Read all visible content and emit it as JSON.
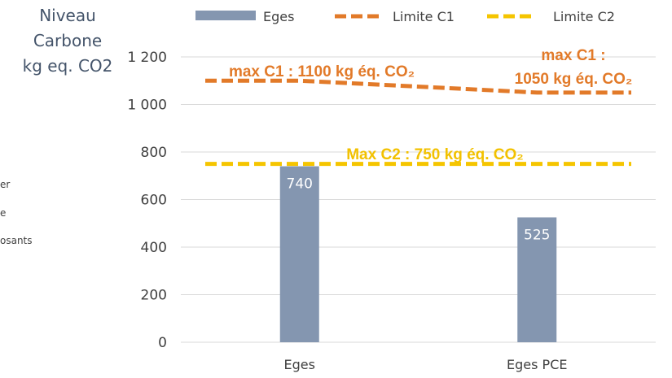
{
  "chart_data": {
    "type": "bar",
    "ylabel_lines": [
      "Niveau",
      "Carbone",
      "kg eq. CO2"
    ],
    "categories": [
      "Eges",
      "Eges PCE"
    ],
    "ylim": [
      0,
      1200
    ],
    "yticks": [
      0,
      200,
      400,
      600,
      800,
      1000,
      1200
    ],
    "ytick_labels": [
      "0",
      "200",
      "400",
      "600",
      "800",
      "1 000",
      "1 200"
    ],
    "grid": true,
    "legend_position": "top",
    "series": [
      {
        "name": "Eges",
        "kind": "bar",
        "color": "#8496b0",
        "values": [
          740,
          525
        ],
        "data_labels": [
          "740",
          "525"
        ]
      },
      {
        "name": "Limite C1",
        "kind": "line",
        "style": "dashed",
        "color": "#e27a29",
        "values": [
          1100,
          1050
        ]
      },
      {
        "name": "Limite C2",
        "kind": "line",
        "style": "dashed",
        "color": "#f5c500",
        "values": [
          750,
          750
        ]
      }
    ],
    "annotations": [
      {
        "id": "c1-a",
        "lines": [
          "max C1 : 1100 kg éq. CO₂"
        ]
      },
      {
        "id": "c1-b",
        "lines": [
          "max C1 :",
          "1050 kg éq. CO₂"
        ]
      },
      {
        "id": "c2",
        "lines": [
          "Max C2 : 750 kg éq. CO₂"
        ]
      }
    ],
    "side_legend_fragments": [
      "er",
      "e",
      "osants"
    ]
  }
}
